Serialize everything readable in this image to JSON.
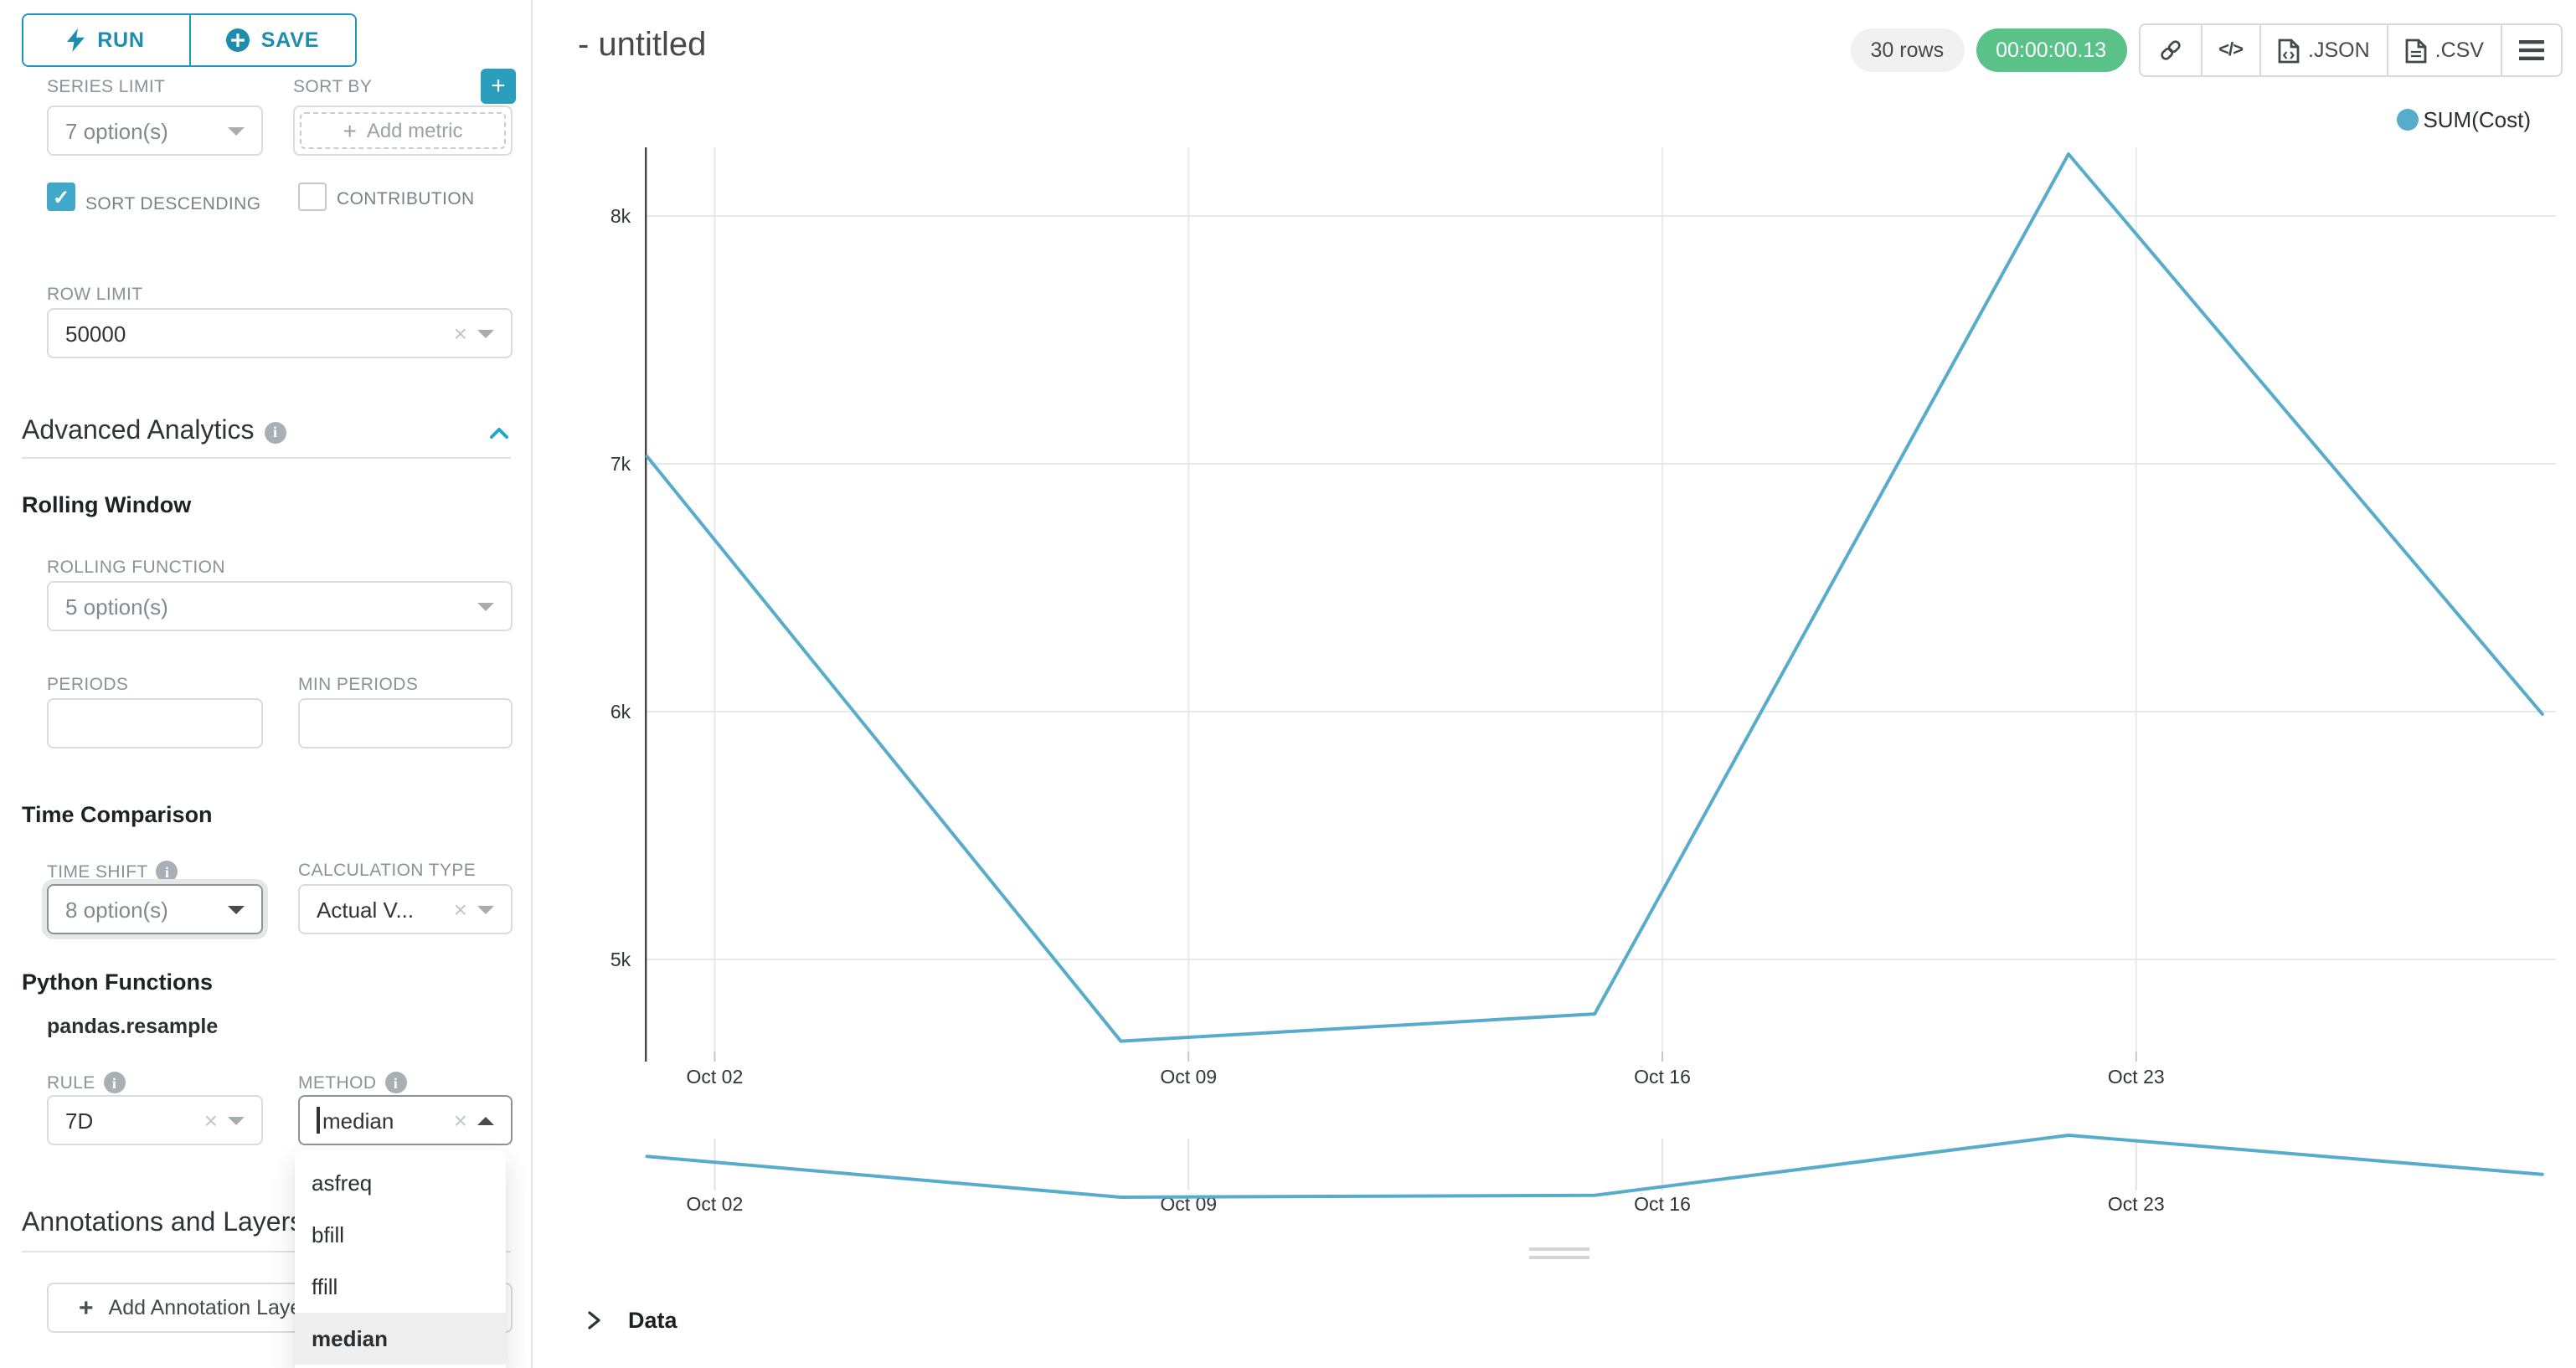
{
  "colors": {
    "accent": "#20a7c9",
    "series": "#57accc",
    "success_badge": "#5ac189",
    "grid": "#e9e9e9",
    "axis": "#454545"
  },
  "actions": {
    "run_label": "RUN",
    "save_label": "SAVE"
  },
  "controls": {
    "series_limit": {
      "label": "SERIES LIMIT",
      "value": "7 option(s)"
    },
    "sort_by": {
      "label": "SORT BY",
      "placeholder": "Add metric"
    },
    "sort_descending": {
      "label": "SORT DESCENDING",
      "checked": true
    },
    "contribution": {
      "label": "CONTRIBUTION",
      "checked": false
    },
    "row_limit": {
      "label": "ROW LIMIT",
      "value": "50000"
    },
    "advanced_analytics": {
      "title": "Advanced Analytics"
    },
    "rolling_window": {
      "title": "Rolling Window"
    },
    "rolling_function": {
      "label": "ROLLING FUNCTION",
      "value": "5 option(s)"
    },
    "periods": {
      "label": "PERIODS",
      "value": ""
    },
    "min_periods": {
      "label": "MIN PERIODS",
      "value": ""
    },
    "time_comparison": {
      "title": "Time Comparison"
    },
    "time_shift": {
      "label": "TIME SHIFT",
      "value": "8 option(s)"
    },
    "calculation_type": {
      "label": "CALCULATION TYPE",
      "value": "Actual V..."
    },
    "python_functions": {
      "title": "Python Functions",
      "subtitle": "pandas.resample"
    },
    "rule": {
      "label": "RULE",
      "value": "7D"
    },
    "method": {
      "label": "METHOD",
      "value": "median",
      "options": [
        "asfreq",
        "bfill",
        "ffill",
        "median"
      ],
      "selected": "median"
    },
    "annotations": {
      "title": "Annotations and Layers",
      "add_button": "Add Annotation Layer"
    }
  },
  "header": {
    "title": "- untitled",
    "rows_badge": "30 rows",
    "timer_badge": "00:00:00.13",
    "json_label": ".JSON",
    "csv_label": ".CSV"
  },
  "data_panel": {
    "title": "Data"
  },
  "chart_data": {
    "type": "line",
    "title": "",
    "legend_position": "top-right",
    "grid": true,
    "series": [
      {
        "name": "SUM(Cost)",
        "x": [
          "Oct 01",
          "Oct 08",
          "Oct 15",
          "Oct 22",
          "Oct 29"
        ],
        "values": [
          7030,
          4670,
          4780,
          8250,
          5990
        ]
      }
    ],
    "x_tick_labels": [
      "Oct 02",
      "Oct 09",
      "Oct 16",
      "Oct 23"
    ],
    "y_ticks": [
      5000,
      6000,
      7000,
      8000
    ],
    "y_tick_labels": [
      "5k",
      "6k",
      "7k",
      "8k"
    ],
    "ylim": [
      4600,
      8300
    ],
    "has_mini_overview": true
  }
}
